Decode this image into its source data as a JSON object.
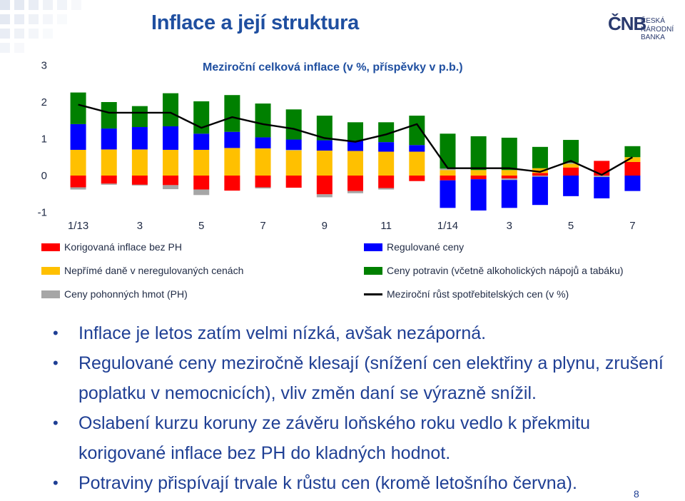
{
  "slide": {
    "title": "Inflace a její struktura",
    "logo_mark": "ČNB",
    "logo_line1": "ČESKÁ",
    "logo_line2": "NÁRODNÍ BANKA",
    "page_number": "8"
  },
  "bullets": [
    "Inflace je letos zatím velmi nízká, avšak nezáporná.",
    "Regulované ceny meziročně klesají (snížení cen elektřiny a plynu, zrušení poplatku v nemocnicích), vliv změn daní se výrazně snížil.",
    "Oslabení kurzu koruny ze závěru loňského roku vedlo k překmitu korigované inflace bez PH do kladných hodnot.",
    "Potraviny přispívají trvale k růstu cen (kromě letošního června)."
  ],
  "chart_data": {
    "type": "bar",
    "stacked": true,
    "title": "Meziroční celková inflace (v %, příspěvky v p.b.)",
    "ylim": [
      -1,
      3
    ],
    "yticks": [
      "3",
      "2",
      "1",
      "0",
      "-1"
    ],
    "ytick_values": [
      3,
      2,
      1,
      0,
      -1
    ],
    "xtick_labels": [
      {
        "index": 0,
        "label": "1/13"
      },
      {
        "index": 2,
        "label": "3"
      },
      {
        "index": 4,
        "label": "5"
      },
      {
        "index": 6,
        "label": "7"
      },
      {
        "index": 8,
        "label": "9"
      },
      {
        "index": 10,
        "label": "11"
      },
      {
        "index": 12,
        "label": "1/14"
      },
      {
        "index": 14,
        "label": "3"
      },
      {
        "index": 16,
        "label": "5"
      },
      {
        "index": 18,
        "label": "7"
      }
    ],
    "categories": [
      "1/13",
      "2/13",
      "3/13",
      "4/13",
      "5/13",
      "6/13",
      "7/13",
      "8/13",
      "9/13",
      "10/13",
      "11/13",
      "12/13",
      "1/14",
      "2/14",
      "3/14",
      "4/14",
      "5/14",
      "6/14",
      "7/14"
    ],
    "series": [
      {
        "name": "Korigovaná inflace bez PH",
        "color": "#ff0000",
        "values": [
          -0.32,
          -0.22,
          -0.25,
          -0.26,
          -0.38,
          -0.41,
          -0.32,
          -0.33,
          -0.51,
          -0.42,
          -0.34,
          -0.15,
          -0.13,
          -0.1,
          -0.08,
          0.07,
          0.22,
          0.4,
          0.37
        ]
      },
      {
        "name": "Nepřímé daně v neregulovaných cenách",
        "color": "#ffc000",
        "values": [
          0.7,
          0.71,
          0.71,
          0.7,
          0.7,
          0.75,
          0.74,
          0.68,
          0.68,
          0.67,
          0.65,
          0.65,
          0.15,
          0.15,
          0.15,
          0.13,
          0.1,
          0.0,
          0.13
        ]
      },
      {
        "name": "Ceny pohonných hmot (PH)",
        "color": "#a6a6a6",
        "values": [
          -0.06,
          -0.03,
          -0.02,
          -0.11,
          -0.15,
          0.0,
          -0.03,
          0.02,
          -0.08,
          -0.06,
          -0.04,
          0.0,
          0.04,
          0.0,
          -0.04,
          -0.03,
          0.03,
          -0.04,
          0.0
        ]
      },
      {
        "name": "Regulované ceny",
        "color": "#0000ff",
        "values": [
          0.7,
          0.57,
          0.61,
          0.64,
          0.44,
          0.44,
          0.3,
          0.28,
          0.28,
          0.28,
          0.26,
          0.18,
          -0.75,
          -0.85,
          -0.76,
          -0.77,
          -0.56,
          -0.58,
          -0.42
        ]
      },
      {
        "name": "Ceny potravin (včetně alkoholických nápojů a tabáku)",
        "color": "#008000",
        "values": [
          0.86,
          0.72,
          0.57,
          0.9,
          0.88,
          1.0,
          0.92,
          0.82,
          0.67,
          0.5,
          0.54,
          0.8,
          0.95,
          0.92,
          0.88,
          0.58,
          0.62,
          0.0,
          0.3
        ]
      },
      {
        "name": "Meziroční růst spotřebitelských cen (v %)",
        "color": "#000000",
        "kind": "line",
        "values": [
          1.93,
          1.71,
          1.71,
          1.71,
          1.3,
          1.59,
          1.4,
          1.27,
          1.02,
          0.92,
          1.12,
          1.4,
          0.2,
          0.2,
          0.2,
          0.1,
          0.4,
          0.02,
          0.5
        ]
      }
    ],
    "legend": [
      {
        "label": "Korigovaná inflace bez PH",
        "color": "#ff0000",
        "kind": "box"
      },
      {
        "label": "Regulované ceny",
        "color": "#0000ff",
        "kind": "box"
      },
      {
        "label": "Nepřímé daně v neregulovaných cenách",
        "color": "#ffc000",
        "kind": "box"
      },
      {
        "label": "Ceny potravin (včetně alkoholických nápojů a tabáku)",
        "color": "#008000",
        "kind": "box"
      },
      {
        "label": "Ceny pohonných hmot (PH)",
        "color": "#a6a6a6",
        "kind": "box"
      },
      {
        "label": "Meziroční růst spotřebitelských cen (v %)",
        "color": "#000000",
        "kind": "line"
      }
    ]
  }
}
